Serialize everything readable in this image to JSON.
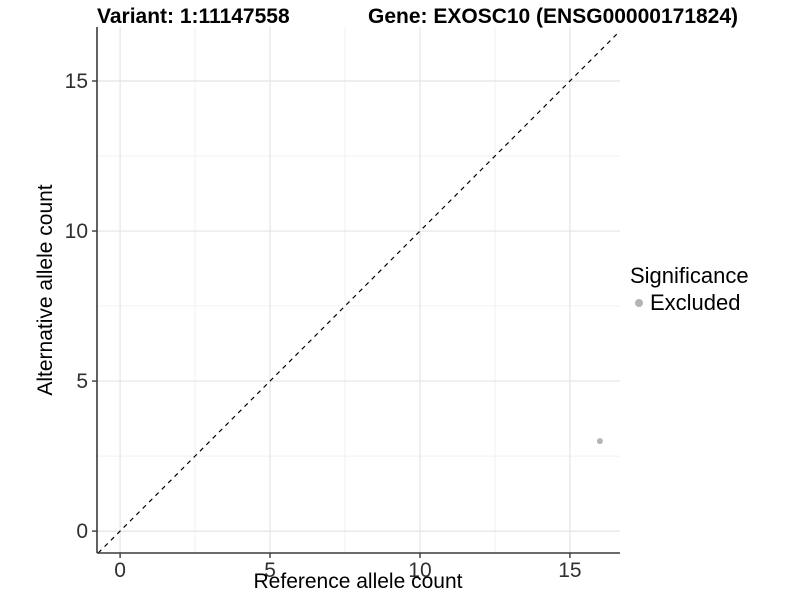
{
  "titles": {
    "variant": "Variant: 1:11147558",
    "gene": "Gene: EXOSC10 (ENSG00000171824)"
  },
  "chart_data": {
    "type": "scatter",
    "xlabel": "Reference allele count",
    "ylabel": "Alternative allele count",
    "xlim": [
      -0.77,
      16.67
    ],
    "ylim": [
      -0.73,
      16.8
    ],
    "x_ticks": [
      0,
      5,
      10,
      15
    ],
    "y_ticks": [
      0,
      5,
      10,
      15
    ],
    "x_minor_ticks": [
      2.5,
      7.5,
      12.5
    ],
    "y_minor_ticks": [
      2.5,
      7.5,
      12.5
    ],
    "grid": "major+minor",
    "reference_line": {
      "kind": "identity-diagonal",
      "slope": 1,
      "intercept": 0,
      "style": "dashed",
      "color": "#000000"
    },
    "series": [
      {
        "name": "Excluded",
        "color": "#b4b4b4",
        "points": [
          [
            16,
            3
          ]
        ]
      }
    ],
    "legend": {
      "title": "Significance",
      "position": "right",
      "entries": [
        {
          "label": "Excluded",
          "color": "#b4b4b4",
          "marker": "circle"
        }
      ]
    },
    "colors": {
      "grid_major": "#e4e4e4",
      "grid_minor": "#f1f1f1",
      "axis_line": "#3a3a3a",
      "axis_text": "#303030"
    }
  }
}
